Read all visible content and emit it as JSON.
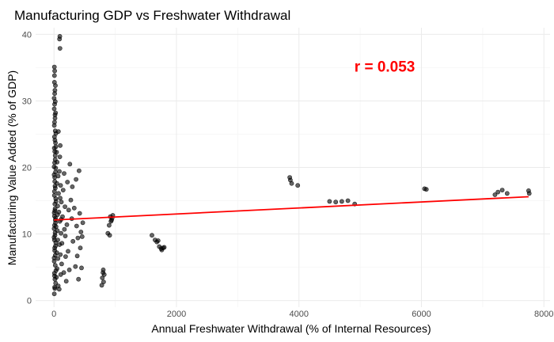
{
  "chart_data": {
    "type": "scatter",
    "title": "Manufacturing GDP vs Freshwater Withdrawal",
    "xlabel": "Annual Freshwater Withdrawal (% of Internal Resources)",
    "ylabel": "Manufacturing Value Added (% of GDP)",
    "xlim": [
      -300,
      8100
    ],
    "ylim": [
      -1,
      41
    ],
    "x_ticks": [
      0,
      2000,
      4000,
      6000,
      8000
    ],
    "x_minor_ticks": [
      1000,
      3000,
      5000,
      7000
    ],
    "y_ticks": [
      0,
      10,
      20,
      30,
      40
    ],
    "y_minor_ticks": [
      5,
      15,
      25,
      35
    ],
    "grid": true,
    "point_color": "#000000",
    "trend_color": "#ff0000",
    "annotation": {
      "text": "r = 0.053",
      "x": 5400,
      "y": 35.2,
      "color": "#ff0000"
    },
    "trendline": {
      "x": [
        0,
        7750
      ],
      "y": [
        12.1,
        15.6
      ]
    },
    "points": [
      [
        5,
        1
      ],
      [
        10,
        2
      ],
      [
        15,
        3.2
      ],
      [
        8,
        4.1
      ],
      [
        20,
        5.3
      ],
      [
        3,
        6.4
      ],
      [
        12,
        7.5
      ],
      [
        25,
        8.2
      ],
      [
        6,
        9.1
      ],
      [
        18,
        10.2
      ],
      [
        9,
        11.3
      ],
      [
        22,
        12.1
      ],
      [
        4,
        13.2
      ],
      [
        14,
        14.5
      ],
      [
        28,
        15.3
      ],
      [
        7,
        16.4
      ],
      [
        16,
        17.2
      ],
      [
        11,
        18.5
      ],
      [
        24,
        19.3
      ],
      [
        2,
        20.1
      ],
      [
        19,
        21.2
      ],
      [
        13,
        22.4
      ],
      [
        30,
        23.1
      ],
      [
        8,
        24.6
      ],
      [
        21,
        25.5
      ],
      [
        5,
        26.3
      ],
      [
        17,
        27.4
      ],
      [
        26,
        28.2
      ],
      [
        10,
        29.5
      ],
      [
        3,
        30.4
      ],
      [
        15,
        31.6
      ],
      [
        23,
        32.3
      ],
      [
        7,
        33.8
      ],
      [
        12,
        34.5
      ],
      [
        6,
        35.1
      ],
      [
        14,
        1.8
      ],
      [
        27,
        2.6
      ],
      [
        9,
        3.7
      ],
      [
        32,
        4.5
      ],
      [
        4,
        5.9
      ],
      [
        20,
        6.8
      ],
      [
        11,
        7.9
      ],
      [
        29,
        8.7
      ],
      [
        16,
        9.8
      ],
      [
        2,
        10.8
      ],
      [
        25,
        11.7
      ],
      [
        8,
        12.7
      ],
      [
        18,
        13.8
      ],
      [
        34,
        14.9
      ],
      [
        6,
        15.8
      ],
      [
        22,
        16.9
      ],
      [
        13,
        17.9
      ],
      [
        3,
        18.9
      ],
      [
        28,
        19.9
      ],
      [
        10,
        20.7
      ],
      [
        19,
        21.8
      ],
      [
        5,
        22.9
      ],
      [
        24,
        23.7
      ],
      [
        15,
        24.1
      ],
      [
        31,
        25.1
      ],
      [
        9,
        26.8
      ],
      [
        17,
        27.9
      ],
      [
        4,
        28.8
      ],
      [
        21,
        29.9
      ],
      [
        12,
        31.1
      ],
      [
        7,
        32.8
      ],
      [
        26,
        12.4
      ],
      [
        14,
        13.5
      ],
      [
        33,
        11.1
      ],
      [
        1,
        9.5
      ],
      [
        40,
        3.5
      ],
      [
        45,
        7.2
      ],
      [
        55,
        10.5
      ],
      [
        60,
        14.2
      ],
      [
        48,
        17.6
      ],
      [
        52,
        20.8
      ],
      [
        65,
        6.3
      ],
      [
        70,
        2.2
      ],
      [
        58,
        12.9
      ],
      [
        75,
        16.1
      ],
      [
        42,
        22.3
      ],
      [
        50,
        4.8
      ],
      [
        68,
        18.7
      ],
      [
        62,
        9.1
      ],
      [
        80,
        13.3
      ],
      [
        72,
        25.4
      ],
      [
        85,
        1.7
      ],
      [
        90,
        8.4
      ],
      [
        95,
        11.9
      ],
      [
        100,
        15.4
      ],
      [
        88,
        19.4
      ],
      [
        105,
        6.9
      ],
      [
        110,
        3.9
      ],
      [
        96,
        21.6
      ],
      [
        115,
        10.1
      ],
      [
        120,
        14.8
      ],
      [
        108,
        17.3
      ],
      [
        125,
        5.5
      ],
      [
        102,
        23.3
      ],
      [
        118,
        12.2
      ],
      [
        90,
        39.3
      ],
      [
        95,
        39.7
      ],
      [
        98,
        37.9
      ],
      [
        130,
        8.6
      ],
      [
        140,
        12.6
      ],
      [
        150,
        16.6
      ],
      [
        160,
        4.2
      ],
      [
        170,
        10.7
      ],
      [
        180,
        14.1
      ],
      [
        165,
        19.1
      ],
      [
        190,
        6.6
      ],
      [
        200,
        2.9
      ],
      [
        210,
        11.4
      ],
      [
        220,
        17.8
      ],
      [
        185,
        9.7
      ],
      [
        240,
        13.6
      ],
      [
        260,
        20.5
      ],
      [
        230,
        7.4
      ],
      [
        275,
        15.1
      ],
      [
        250,
        4.6
      ],
      [
        290,
        12.3
      ],
      [
        310,
        8.9
      ],
      [
        330,
        13.9
      ],
      [
        300,
        17.1
      ],
      [
        350,
        5.1
      ],
      [
        370,
        11.2
      ],
      [
        390,
        9.4
      ],
      [
        410,
        19.5
      ],
      [
        360,
        18.2
      ],
      [
        420,
        13.1
      ],
      [
        380,
        6.7
      ],
      [
        440,
        10.3
      ],
      [
        460,
        9.6
      ],
      [
        470,
        11.7
      ],
      [
        430,
        7.9
      ],
      [
        400,
        3.2
      ],
      [
        450,
        4.9
      ],
      [
        780,
        2.3
      ],
      [
        790,
        3.4
      ],
      [
        800,
        4.2
      ],
      [
        810,
        2.8
      ],
      [
        820,
        3.9
      ],
      [
        805,
        4.6
      ],
      [
        880,
        10.1
      ],
      [
        900,
        11.3
      ],
      [
        920,
        12.6
      ],
      [
        940,
        12.1
      ],
      [
        960,
        12.8
      ],
      [
        910,
        9.8
      ],
      [
        930,
        11.9
      ],
      [
        950,
        12.4
      ],
      [
        1600,
        9.8
      ],
      [
        1650,
        9.1
      ],
      [
        1700,
        9.0
      ],
      [
        1720,
        8.1
      ],
      [
        1750,
        7.8
      ],
      [
        1760,
        7.6
      ],
      [
        1780,
        7.9
      ],
      [
        1800,
        8.0
      ],
      [
        1680,
        8.8
      ],
      [
        3850,
        18.5
      ],
      [
        3860,
        18.1
      ],
      [
        3880,
        17.6
      ],
      [
        3980,
        17.3
      ],
      [
        4500,
        14.9
      ],
      [
        4600,
        14.8
      ],
      [
        4700,
        14.9
      ],
      [
        4800,
        15.0
      ],
      [
        4910,
        14.5
      ],
      [
        6050,
        16.8
      ],
      [
        6080,
        16.7
      ],
      [
        7200,
        15.9
      ],
      [
        7250,
        16.3
      ],
      [
        7320,
        16.6
      ],
      [
        7400,
        16.1
      ],
      [
        7750,
        16.5
      ],
      [
        7760,
        16.1
      ]
    ]
  }
}
